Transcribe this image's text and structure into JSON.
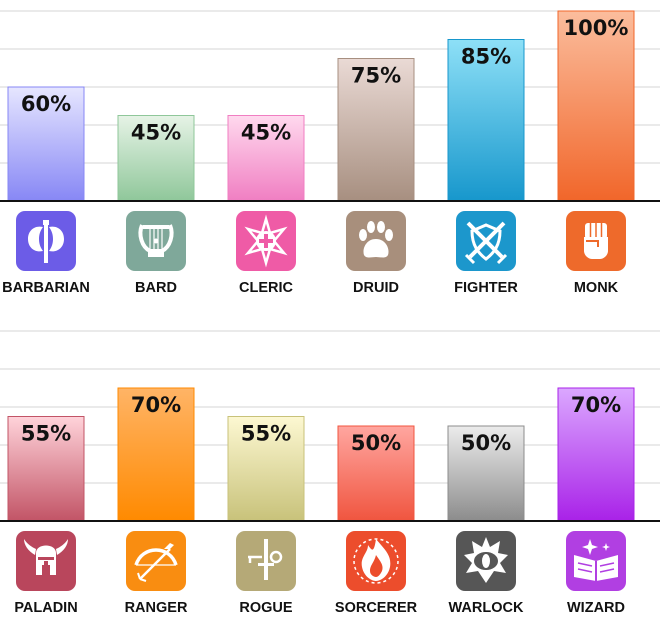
{
  "chart_data": [
    {
      "type": "bar",
      "title": "",
      "xlabel": "",
      "ylabel": "",
      "ylim": [
        0,
        100
      ],
      "grid": true,
      "legend": "none",
      "categories": [
        "BARBARIAN",
        "BARD",
        "CLERIC",
        "DRUID",
        "FIGHTER",
        "MONK"
      ],
      "values": [
        60,
        45,
        45,
        75,
        85,
        100
      ],
      "labels": [
        "60%",
        "45%",
        "45%",
        "75%",
        "85%",
        "100%"
      ],
      "colors": [
        [
          "#e6e6ff",
          "#8787f5"
        ],
        [
          "#e6f3e6",
          "#8fc79a"
        ],
        [
          "#ffd9ee",
          "#f07ec2"
        ],
        [
          "#eadad5",
          "#a78f80"
        ],
        [
          "#8ee0f7",
          "#1797cc"
        ],
        [
          "#fbbd9d",
          "#f1662a"
        ]
      ],
      "icon_colors": [
        "#6c5ce7",
        "#7fa89a",
        "#ef5ba6",
        "#a88f7c",
        "#1c97cc",
        "#ee6a2b"
      ],
      "icons": [
        "battle-axe-icon",
        "lyre-icon",
        "holy-symbol-icon",
        "paw-print-icon",
        "crossed-swords-shield-icon",
        "fist-icon"
      ]
    },
    {
      "type": "bar",
      "title": "",
      "xlabel": "",
      "ylabel": "",
      "ylim": [
        0,
        100
      ],
      "grid": true,
      "legend": "none",
      "categories": [
        "PALADIN",
        "RANGER",
        "ROGUE",
        "SORCERER",
        "WARLOCK",
        "WIZARD"
      ],
      "values": [
        55,
        70,
        55,
        50,
        50,
        70
      ],
      "labels": [
        "55%",
        "70%",
        "55%",
        "50%",
        "50%",
        "70%"
      ],
      "colors": [
        [
          "#ffd3da",
          "#c25466"
        ],
        [
          "#ffb466",
          "#ff8a00"
        ],
        [
          "#fdf8d2",
          "#c8c27a"
        ],
        [
          "#ffa6a0",
          "#f0553f"
        ],
        [
          "#ececec",
          "#8c8c8c"
        ],
        [
          "#dba8ff",
          "#a922e8"
        ]
      ],
      "icon_colors": [
        "#b9465c",
        "#f98d11",
        "#b5a977",
        "#ec4d2c",
        "#565656",
        "#b13fe2"
      ],
      "icons": [
        "winged-helmet-icon",
        "bow-arrow-icon",
        "dagger-key-icon",
        "flame-icon",
        "eye-icon",
        "spellbook-icon"
      ]
    }
  ]
}
